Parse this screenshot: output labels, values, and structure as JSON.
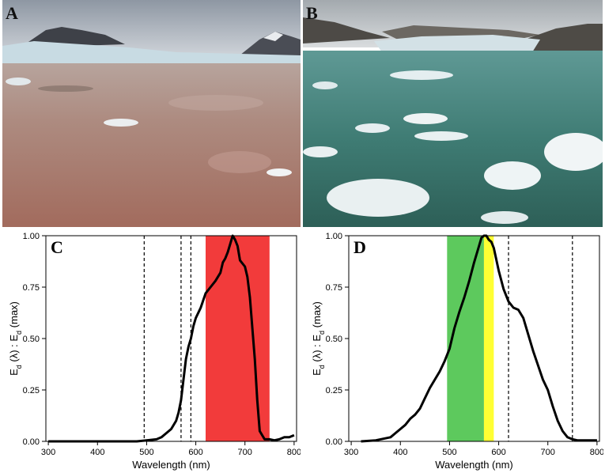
{
  "photos": [
    {
      "label": "A",
      "description_color": "reddish water"
    },
    {
      "label": "B",
      "description_color": "green water"
    }
  ],
  "chart_data": [
    {
      "type": "line",
      "panel_label": "C",
      "xlabel": "Wavelength (nm)",
      "ylabel": "E_d (λ) : E_d (max)",
      "xlim": [
        295,
        805
      ],
      "ylim": [
        0,
        1.0
      ],
      "xticks": [
        300,
        400,
        500,
        600,
        700,
        800
      ],
      "yticks": [
        0.0,
        0.25,
        0.5,
        0.75,
        1.0
      ],
      "ytick_labels": [
        "0.00",
        "0.25",
        "0.50",
        "0.75",
        "1.00"
      ],
      "bands": [
        {
          "from": 620,
          "to": 750,
          "color": "#f23b3b"
        }
      ],
      "dashed_lines": [
        495,
        570,
        590
      ],
      "series": [
        {
          "x": [
            300,
            400,
            480,
            500,
            520,
            530,
            540,
            550,
            560,
            565,
            570,
            575,
            580,
            585,
            590,
            595,
            600,
            610,
            620,
            630,
            640,
            650,
            655,
            660,
            665,
            670,
            675,
            680,
            685,
            690,
            700,
            705,
            710,
            715,
            720,
            725,
            730,
            740,
            750,
            760,
            770,
            780,
            790,
            800
          ],
          "y": [
            0.0,
            0.0,
            0.0,
            0.005,
            0.01,
            0.02,
            0.04,
            0.06,
            0.1,
            0.14,
            0.2,
            0.3,
            0.4,
            0.46,
            0.5,
            0.56,
            0.6,
            0.65,
            0.72,
            0.75,
            0.78,
            0.82,
            0.87,
            0.89,
            0.92,
            0.96,
            1.0,
            0.98,
            0.95,
            0.88,
            0.85,
            0.8,
            0.7,
            0.55,
            0.4,
            0.2,
            0.05,
            0.01,
            0.01,
            0.005,
            0.01,
            0.02,
            0.02,
            0.03
          ],
          "color": "#000000"
        }
      ]
    },
    {
      "type": "line",
      "panel_label": "D",
      "xlabel": "Wavelength (nm)",
      "ylabel": "E_d (λ) : E_d (max)",
      "xlim": [
        295,
        805
      ],
      "ylim": [
        0,
        1.0
      ],
      "xticks": [
        300,
        400,
        500,
        600,
        700,
        800
      ],
      "yticks": [
        0.0,
        0.25,
        0.5,
        0.75,
        1.0
      ],
      "ytick_labels": [
        "0.00",
        "0.25",
        "0.50",
        "0.75",
        "1.00"
      ],
      "bands": [
        {
          "from": 495,
          "to": 570,
          "color": "#5dc95d"
        },
        {
          "from": 570,
          "to": 590,
          "color": "#ffff33"
        }
      ],
      "dashed_lines": [
        620,
        750
      ],
      "series": [
        {
          "x": [
            320,
            350,
            380,
            390,
            400,
            410,
            420,
            430,
            440,
            450,
            460,
            470,
            480,
            490,
            500,
            510,
            520,
            530,
            540,
            550,
            560,
            565,
            570,
            575,
            580,
            585,
            590,
            600,
            610,
            620,
            630,
            640,
            650,
            660,
            670,
            680,
            690,
            700,
            710,
            720,
            730,
            740,
            750,
            760,
            770,
            780,
            790,
            800
          ],
          "y": [
            0.0,
            0.005,
            0.02,
            0.04,
            0.06,
            0.08,
            0.11,
            0.13,
            0.16,
            0.21,
            0.26,
            0.3,
            0.34,
            0.39,
            0.45,
            0.55,
            0.63,
            0.7,
            0.78,
            0.87,
            0.95,
            0.99,
            1.0,
            1.0,
            0.98,
            0.97,
            0.94,
            0.83,
            0.74,
            0.68,
            0.65,
            0.64,
            0.6,
            0.52,
            0.44,
            0.37,
            0.3,
            0.25,
            0.17,
            0.1,
            0.05,
            0.02,
            0.01,
            0.005,
            0.005,
            0.005,
            0.005,
            0.005
          ],
          "color": "#000000"
        }
      ]
    }
  ]
}
